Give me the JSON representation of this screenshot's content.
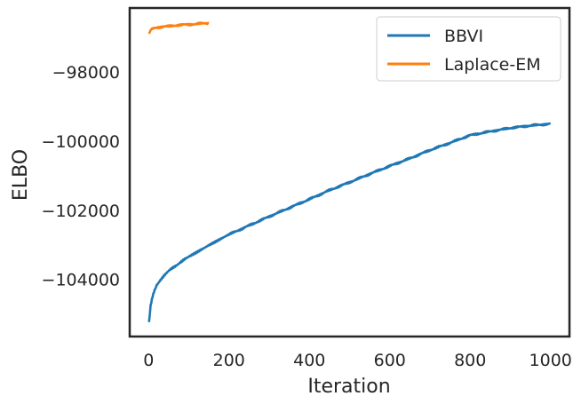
{
  "chart_data": {
    "type": "line",
    "title": "",
    "xlabel": "Iteration",
    "ylabel": "ELBO",
    "xlim": [
      -47,
      1047
    ],
    "ylim": [
      -105650,
      -96150
    ],
    "xticks": [
      0,
      200,
      400,
      600,
      800,
      1000
    ],
    "xtick_labels": [
      "0",
      "200",
      "400",
      "600",
      "800",
      "1000"
    ],
    "yticks": [
      -98000,
      -100000,
      -102000,
      -104000
    ],
    "ytick_labels": [
      "−98000",
      "−100000",
      "−102000",
      "−104000"
    ],
    "grid": false,
    "legend": "top-right",
    "series": [
      {
        "name": "BBVI",
        "color": "#1f77b4",
        "x": [
          1,
          5,
          10,
          15,
          20,
          30,
          40,
          50,
          60,
          70,
          80,
          100,
          125,
          150,
          175,
          200,
          250,
          300,
          350,
          400,
          450,
          500,
          550,
          600,
          650,
          700,
          750,
          800,
          850,
          900,
          950,
          1000
        ],
        "y": [
          -105250,
          -104750,
          -104500,
          -104300,
          -104170,
          -104000,
          -103870,
          -103760,
          -103660,
          -103580,
          -103500,
          -103340,
          -103170,
          -103000,
          -102850,
          -102700,
          -102440,
          -102180,
          -101930,
          -101680,
          -101420,
          -101190,
          -100950,
          -100720,
          -100500,
          -100260,
          -100050,
          -99830,
          -99720,
          -99620,
          -99550,
          -99500
        ]
      },
      {
        "name": "Laplace-EM",
        "color": "#ff7f0e",
        "x": [
          1,
          5,
          10,
          20,
          30,
          40,
          50,
          60,
          70,
          80,
          90,
          100,
          110,
          120,
          130,
          140,
          150
        ],
        "y": [
          -96900,
          -96780,
          -96750,
          -96720,
          -96700,
          -96680,
          -96680,
          -96665,
          -96650,
          -96640,
          -96630,
          -96630,
          -96620,
          -96610,
          -96600,
          -96590,
          -96590
        ]
      }
    ]
  }
}
